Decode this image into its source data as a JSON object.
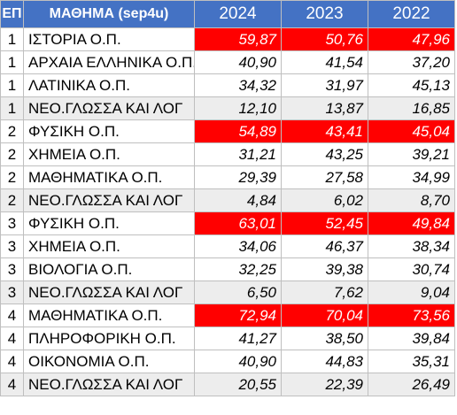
{
  "table": {
    "headers": {
      "ep": "ΕΠ",
      "subject": "ΜΑΘΗΜΑ (sep4u)",
      "years": [
        "2024",
        "2023",
        "2022"
      ]
    },
    "highlight_color": "#ff0000",
    "header_color": "#4472c4",
    "rows": [
      {
        "ep": "1",
        "subject": "ΙΣΤΟΡΙΑ Ο.Π.",
        "values": [
          "59,87",
          "50,76",
          "47,96"
        ],
        "highlight": true,
        "gray": false
      },
      {
        "ep": "1",
        "subject": "ΑΡΧΑΙΑ ΕΛΛΗΝΙΚΑ Ο.Π.",
        "values": [
          "40,90",
          "41,54",
          "37,20"
        ],
        "highlight": false,
        "gray": false
      },
      {
        "ep": "1",
        "subject": "ΛΑΤΙΝΙΚΑ Ο.Π.",
        "values": [
          "34,32",
          "31,97",
          "45,13"
        ],
        "highlight": false,
        "gray": false
      },
      {
        "ep": "1",
        "subject": "ΝΕΟ.ΓΛΩΣΣΑ ΚΑΙ ΛΟΓ",
        "values": [
          "12,10",
          "13,87",
          "16,85"
        ],
        "highlight": false,
        "gray": true
      },
      {
        "ep": "2",
        "subject": "ΦΥΣΙΚΗ Ο.Π.",
        "values": [
          "54,89",
          "43,41",
          "45,04"
        ],
        "highlight": true,
        "gray": false
      },
      {
        "ep": "2",
        "subject": "ΧΗΜΕΙΑ Ο.Π.",
        "values": [
          "31,21",
          "43,25",
          "39,21"
        ],
        "highlight": false,
        "gray": false
      },
      {
        "ep": "2",
        "subject": "ΜΑΘΗΜΑΤΙΚΑ Ο.Π.",
        "values": [
          "29,39",
          "27,58",
          "34,99"
        ],
        "highlight": false,
        "gray": false
      },
      {
        "ep": "2",
        "subject": "ΝΕΟ.ΓΛΩΣΣΑ ΚΑΙ ΛΟΓ",
        "values": [
          "4,84",
          "6,02",
          "8,70"
        ],
        "highlight": false,
        "gray": true
      },
      {
        "ep": "3",
        "subject": "ΦΥΣΙΚΗ Ο.Π.",
        "values": [
          "63,01",
          "52,45",
          "49,84"
        ],
        "highlight": true,
        "gray": false
      },
      {
        "ep": "3",
        "subject": "ΧΗΜΕΙΑ Ο.Π.",
        "values": [
          "34,06",
          "46,37",
          "38,34"
        ],
        "highlight": false,
        "gray": false
      },
      {
        "ep": "3",
        "subject": "ΒΙΟΛΟΓΙΑ Ο.Π.",
        "values": [
          "32,25",
          "39,38",
          "30,74"
        ],
        "highlight": false,
        "gray": false
      },
      {
        "ep": "3",
        "subject": "ΝΕΟ.ΓΛΩΣΣΑ ΚΑΙ ΛΟΓ",
        "values": [
          "6,50",
          "7,62",
          "9,04"
        ],
        "highlight": false,
        "gray": true
      },
      {
        "ep": "4",
        "subject": "ΜΑΘΗΜΑΤΙΚΑ Ο.Π.",
        "values": [
          "72,94",
          "70,04",
          "73,56"
        ],
        "highlight": true,
        "gray": false
      },
      {
        "ep": "4",
        "subject": "ΠΛΗΡΟΦΟΡΙΚΗ Ο.Π.",
        "values": [
          "41,27",
          "38,50",
          "39,84"
        ],
        "highlight": false,
        "gray": false
      },
      {
        "ep": "4",
        "subject": "ΟΙΚΟΝΟΜΙΑ Ο.Π.",
        "values": [
          "40,90",
          "44,83",
          "35,31"
        ],
        "highlight": false,
        "gray": false
      },
      {
        "ep": "4",
        "subject": "ΝΕΟ.ΓΛΩΣΣΑ ΚΑΙ ΛΟΓ",
        "values": [
          "20,55",
          "22,39",
          "26,49"
        ],
        "highlight": false,
        "gray": true
      }
    ]
  }
}
